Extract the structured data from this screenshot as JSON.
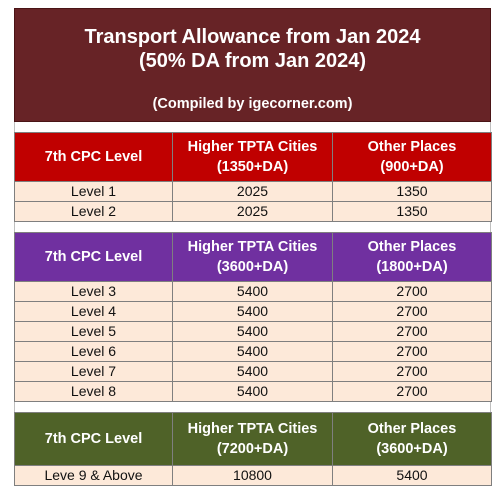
{
  "title": {
    "line1": "Transport Allowance from Jan 2024",
    "line2": "(50% DA from Jan 2024)",
    "line3": "(Compiled by igecorner.com)"
  },
  "colors": {
    "title_bg": "#672326",
    "section1_header": "#c00000",
    "section2_header": "#7030a0",
    "section3_header": "#4f6228",
    "row_bg": "#fde9d9"
  },
  "sections": [
    {
      "header": {
        "col1": "7th CPC Level",
        "col2a": "Higher TPTA Cities",
        "col2b": "(1350+DA)",
        "col3a": "Other Places",
        "col3b": "(900+DA)"
      },
      "rows": [
        {
          "level": "Level 1",
          "higher": "2025",
          "other": "1350"
        },
        {
          "level": "Level 2",
          "higher": "2025",
          "other": "1350"
        }
      ]
    },
    {
      "header": {
        "col1": "7th CPC Level",
        "col2a": "Higher TPTA Cities",
        "col2b": "(3600+DA)",
        "col3a": "Other Places",
        "col3b": "(1800+DA)"
      },
      "rows": [
        {
          "level": "Level 3",
          "higher": "5400",
          "other": "2700"
        },
        {
          "level": "Level 4",
          "higher": "5400",
          "other": "2700"
        },
        {
          "level": "Level 5",
          "higher": "5400",
          "other": "2700"
        },
        {
          "level": "Level 6",
          "higher": "5400",
          "other": "2700"
        },
        {
          "level": "Level 7",
          "higher": "5400",
          "other": "2700"
        },
        {
          "level": "Level 8",
          "higher": "5400",
          "other": "2700"
        }
      ]
    },
    {
      "header": {
        "col1": "7th CPC Level",
        "col2a": "Higher TPTA Cities",
        "col2b": "(7200+DA)",
        "col3a": "Other Places",
        "col3b": "(3600+DA)"
      },
      "rows": [
        {
          "level": "Leve 9 & Above",
          "higher": "10800",
          "other": "5400"
        }
      ]
    }
  ]
}
